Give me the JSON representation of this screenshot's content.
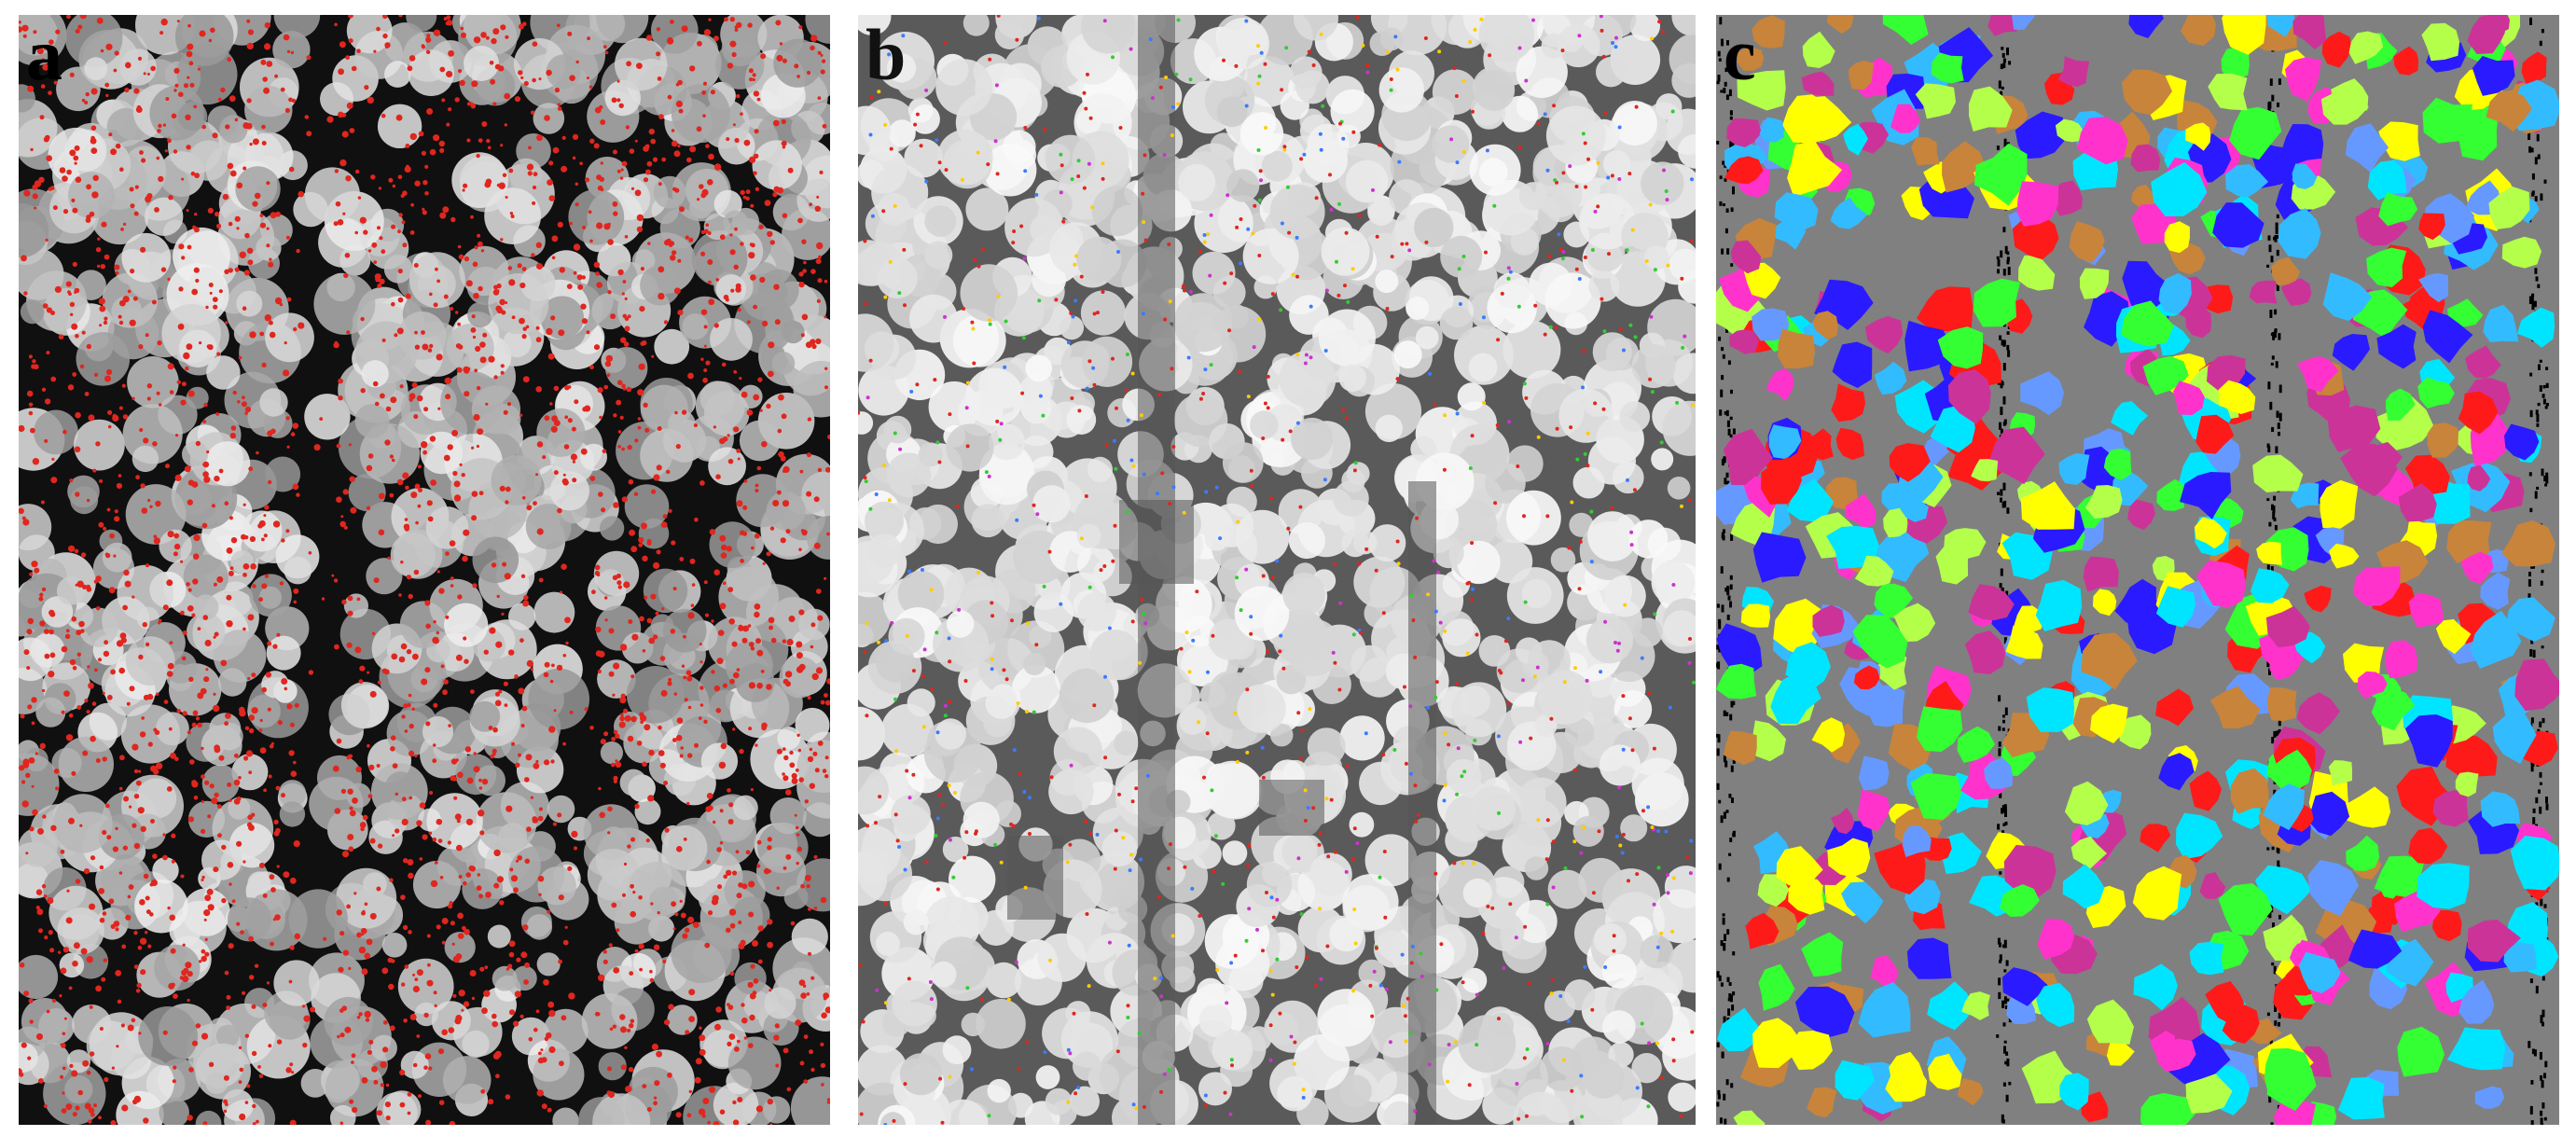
{
  "panels": [
    {
      "id": "a",
      "label": "a",
      "description_style": "grayscale-canopy-with-red-points"
    },
    {
      "id": "b",
      "label": "b",
      "description_style": "bright-canopy-with-colored-seed-points"
    },
    {
      "id": "c",
      "label": "c",
      "description_style": "segmented-tree-crowns"
    }
  ],
  "colors": {
    "panel_a_bg": "#101010",
    "panel_b_bg": "#5a5a5a",
    "panel_c_bg": "#808080",
    "red_points": "#e0261e",
    "crown_palette": [
      "#ff1a1a",
      "#ffff00",
      "#00e5ff",
      "#2a1aff",
      "#33ff33",
      "#ff33cc",
      "#c8843a",
      "#6699ff",
      "#b4ff4a",
      "#cc3399",
      "#33bbff"
    ]
  }
}
